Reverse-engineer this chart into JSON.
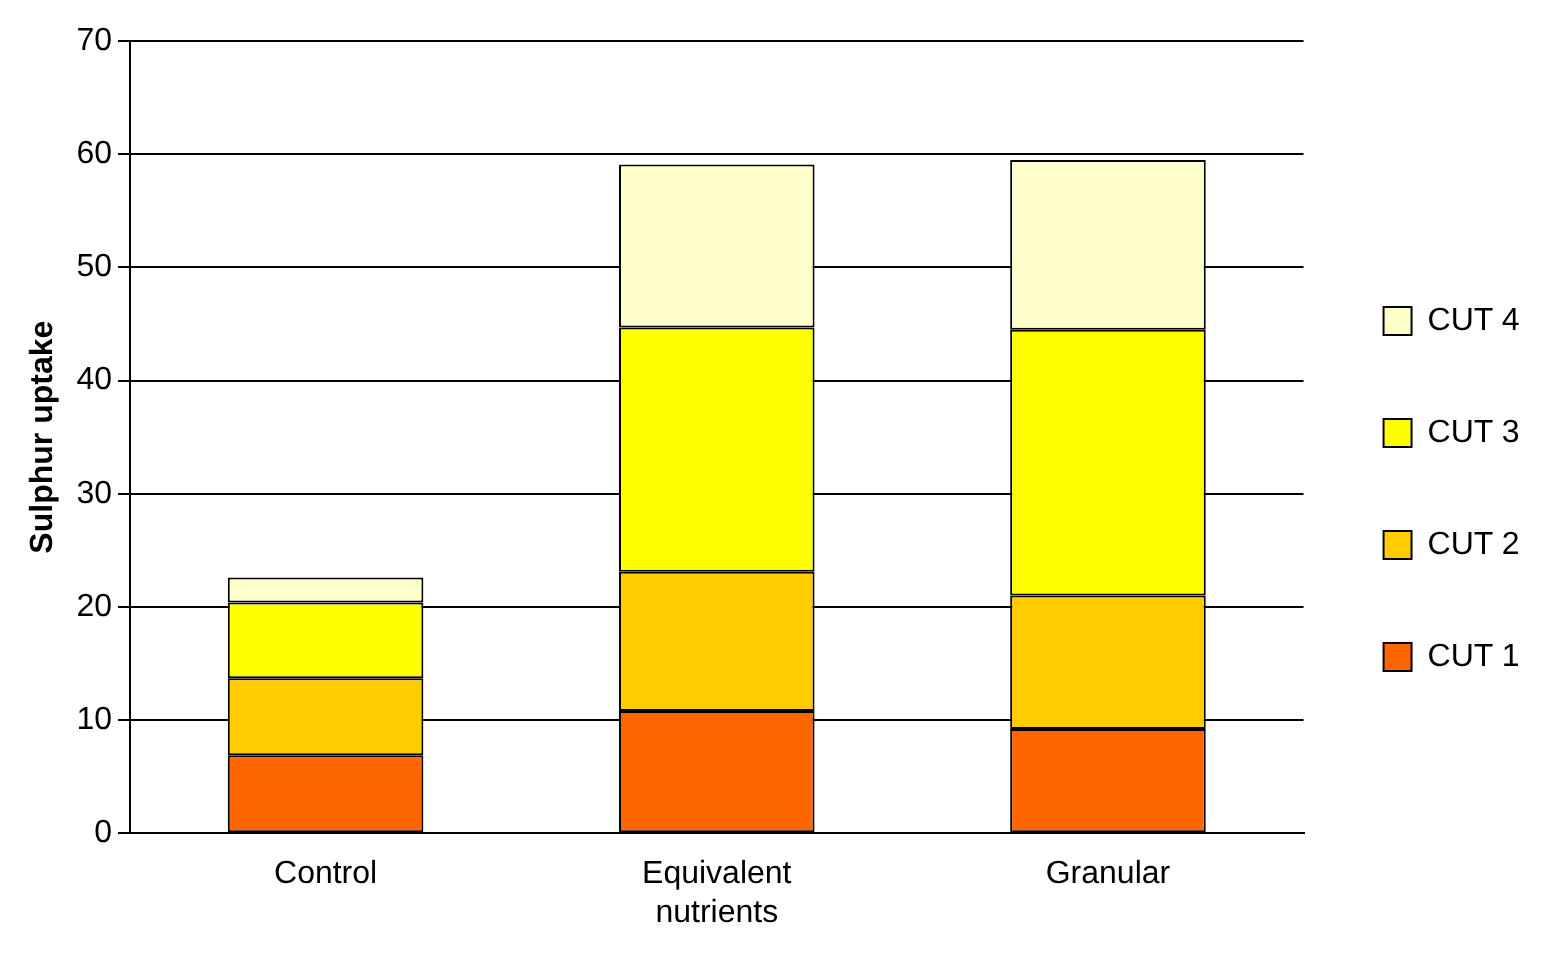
{
  "chart_data": {
    "type": "bar",
    "stacked": true,
    "ylabel": "Sulphur uptake",
    "categories": [
      "Control",
      "Equivalent nutrients",
      "Granular"
    ],
    "series": [
      {
        "name": "CUT 1",
        "color": "#ff6600",
        "values": [
          6.9,
          10.8,
          9.2
        ]
      },
      {
        "name": "CUT 2",
        "color": "#ffcc00",
        "values": [
          6.8,
          12.3,
          11.8
        ]
      },
      {
        "name": "CUT 3",
        "color": "#ffff00",
        "values": [
          6.7,
          21.6,
          23.5
        ]
      },
      {
        "name": "CUT 4",
        "color": "#ffffcc",
        "values": [
          2.2,
          14.4,
          15.0
        ]
      }
    ],
    "ylim": [
      0,
      70
    ],
    "yticks": [
      0,
      10,
      20,
      30,
      40,
      50,
      60,
      70
    ],
    "grid": "y",
    "legend": "right"
  }
}
